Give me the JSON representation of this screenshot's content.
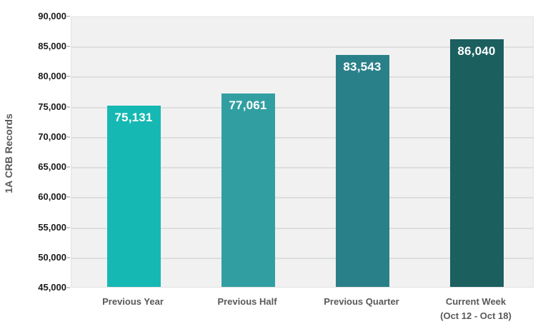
{
  "chart_data": {
    "type": "bar",
    "title": "",
    "xlabel": "",
    "ylabel": "1A CRB Records",
    "categories": [
      {
        "lines": [
          "Previous Year"
        ]
      },
      {
        "lines": [
          "Previous Half"
        ]
      },
      {
        "lines": [
          "Previous Quarter"
        ]
      },
      {
        "lines": [
          "Current Week",
          "(Oct 12 - Oct 18)"
        ]
      }
    ],
    "values": [
      75131,
      77061,
      83543,
      86040
    ],
    "value_labels": [
      "75,131",
      "77,061",
      "83,543",
      "86,040"
    ],
    "bar_colors": [
      "#16B8B3",
      "#319FA2",
      "#2A8089",
      "#1C5F5F"
    ],
    "ylim": [
      45000,
      90000
    ],
    "ytick_step": 5000,
    "ytick_labels_top_to_bottom": [
      "90,000",
      "85,000",
      "80,000",
      "75,000",
      "70,000",
      "65,000",
      "60,000",
      "55,000",
      "50,000",
      "45,000"
    ],
    "grid": true,
    "legend_position": "none",
    "colors": {
      "plot_background": "#F1F1F1",
      "gridline": "#DEDEDE",
      "tick_mark": "#C9C9C9",
      "ytick_label_text": "#1A1A1A",
      "axis_title_text": "#595959",
      "xtick_label_text": "#595959",
      "value_label_text": "#FFFFFF",
      "page_background": "#FFFFFF"
    }
  }
}
